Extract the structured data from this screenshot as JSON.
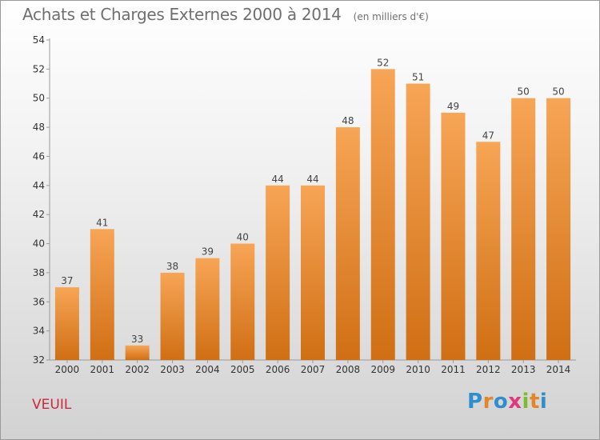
{
  "title": "Achats et Charges Externes 2000 à 2014",
  "unit_note": "(en milliers d'€)",
  "place": "VEUIL",
  "logo": {
    "letters": [
      "P",
      "r",
      "o",
      "x",
      "i",
      "t",
      "i"
    ],
    "colors": [
      "#2f8fce",
      "#e2862a",
      "#2f8fce",
      "#e0387a",
      "#7cbd2f",
      "#e2862a",
      "#2f8fce"
    ]
  },
  "colors": {
    "bar_top": "#f7a556",
    "bar_bottom": "#d06f14",
    "title": "#6f6f6f",
    "place": "#cc2a3a"
  },
  "chart_data": {
    "type": "bar",
    "title": "Achats et Charges Externes 2000 à 2014",
    "categories": [
      "2000",
      "2001",
      "2002",
      "2003",
      "2004",
      "2005",
      "2006",
      "2007",
      "2008",
      "2009",
      "2010",
      "2011",
      "2012",
      "2013",
      "2014"
    ],
    "values": [
      37,
      41,
      33,
      38,
      39,
      40,
      44,
      44,
      48,
      52,
      51,
      49,
      47,
      50,
      50
    ],
    "ylim": [
      32,
      54
    ],
    "yticks": [
      32,
      34,
      36,
      38,
      40,
      42,
      44,
      46,
      48,
      50,
      52,
      54
    ],
    "grid": false,
    "xlabel": "",
    "ylabel": ""
  }
}
